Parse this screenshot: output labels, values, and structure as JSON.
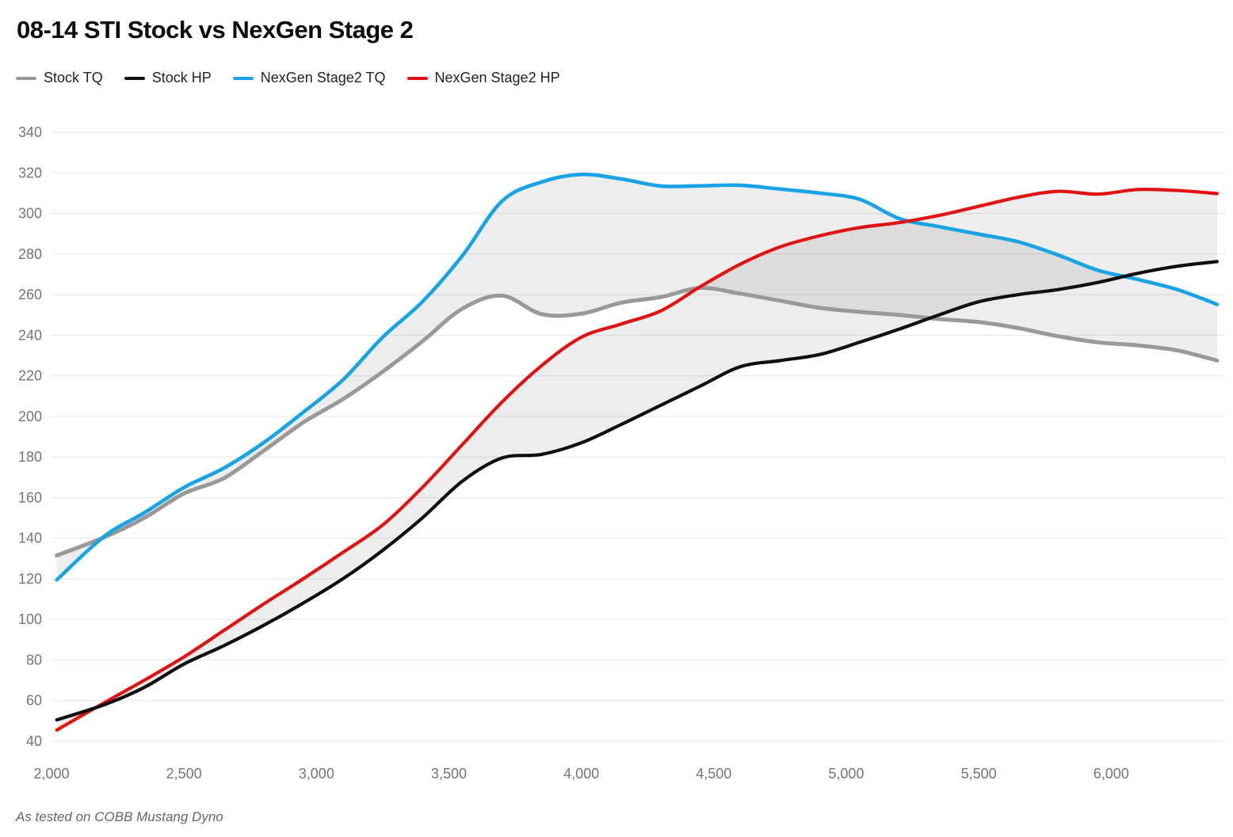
{
  "chart_data": {
    "type": "line",
    "title": "08-14 STI Stock vs NexGen Stage 2",
    "footnote": "As tested on COBB Mustang Dyno",
    "xlabel": "",
    "ylabel": "",
    "xlim": [
      2000,
      6430
    ],
    "ylim": [
      40,
      340
    ],
    "grid": "horizontal-only",
    "grid_color": "#e7e7e7",
    "background": "#ffffff",
    "legend_position": "top-left",
    "fill_color": "rgba(0,0,0,0.07)",
    "fills": [
      [
        2,
        0
      ],
      [
        3,
        1
      ]
    ],
    "x_ticks": [
      {
        "value": 2000,
        "label": "2,000"
      },
      {
        "value": 2500,
        "label": "2,500"
      },
      {
        "value": 3000,
        "label": "3,000"
      },
      {
        "value": 3500,
        "label": "3,500"
      },
      {
        "value": 4000,
        "label": "4,000"
      },
      {
        "value": 4500,
        "label": "4,500"
      },
      {
        "value": 5000,
        "label": "5,000"
      },
      {
        "value": 5500,
        "label": "5,500"
      },
      {
        "value": 6000,
        "label": "6,000"
      }
    ],
    "y_ticks": [
      40,
      60,
      80,
      100,
      120,
      140,
      160,
      180,
      200,
      220,
      240,
      260,
      280,
      300,
      320,
      340
    ],
    "x": [
      2020,
      2200,
      2350,
      2500,
      2650,
      2800,
      2950,
      3100,
      3250,
      3400,
      3550,
      3700,
      3850,
      4000,
      4150,
      4300,
      4450,
      4600,
      4750,
      4900,
      5050,
      5200,
      5350,
      5500,
      5650,
      5800,
      5950,
      6100,
      6250,
      6400
    ],
    "series": [
      {
        "name": "Stock TQ",
        "color": "#999999",
        "stroke_width": 5,
        "values": [
          131.5,
          140.5,
          150,
          162,
          169.5,
          183,
          197,
          208.5,
          222,
          237,
          253,
          259.5,
          250.4,
          250.6,
          256,
          258.8,
          263.3,
          260.5,
          257,
          253.5,
          251.5,
          250,
          248,
          246.5,
          243.5,
          239.5,
          236.5,
          235,
          232.5,
          227.5
        ]
      },
      {
        "name": "Stock HP",
        "color": "#0f0f0f",
        "stroke_width": 4.2,
        "values": [
          50.5,
          58,
          66.5,
          78,
          87,
          97,
          108,
          120,
          134,
          150,
          168,
          179.5,
          181.3,
          187,
          196,
          205.5,
          215,
          224.5,
          227.5,
          230.5,
          236.5,
          243,
          250,
          256.5,
          260,
          262.5,
          266,
          270.5,
          274,
          276.3
        ]
      },
      {
        "name": "NexGen Stage2 TQ",
        "color": "#18a4e4",
        "stroke_width": 4.6,
        "values": [
          119.5,
          141,
          152.5,
          165,
          174.5,
          187,
          202,
          218,
          239,
          256.5,
          279,
          306,
          315.5,
          319.2,
          317,
          313.5,
          313.6,
          313.9,
          312,
          310,
          307,
          297.5,
          293.5,
          289.8,
          286,
          279.5,
          272,
          267.5,
          262.5,
          255.2
        ]
      },
      {
        "name": "NexGen Stage2 HP",
        "color": "#e01212",
        "stroke_width": 4.2,
        "values": [
          45.5,
          59,
          70,
          81.5,
          94.5,
          107.5,
          120,
          133,
          146.5,
          165,
          186,
          207,
          225,
          239,
          245.5,
          252,
          264,
          275,
          283.5,
          289,
          293,
          295.5,
          299,
          303.5,
          308,
          310.9,
          309.5,
          311.8,
          311.3,
          309.8
        ]
      }
    ],
    "draw_order": [
      0,
      2,
      3,
      1
    ]
  }
}
